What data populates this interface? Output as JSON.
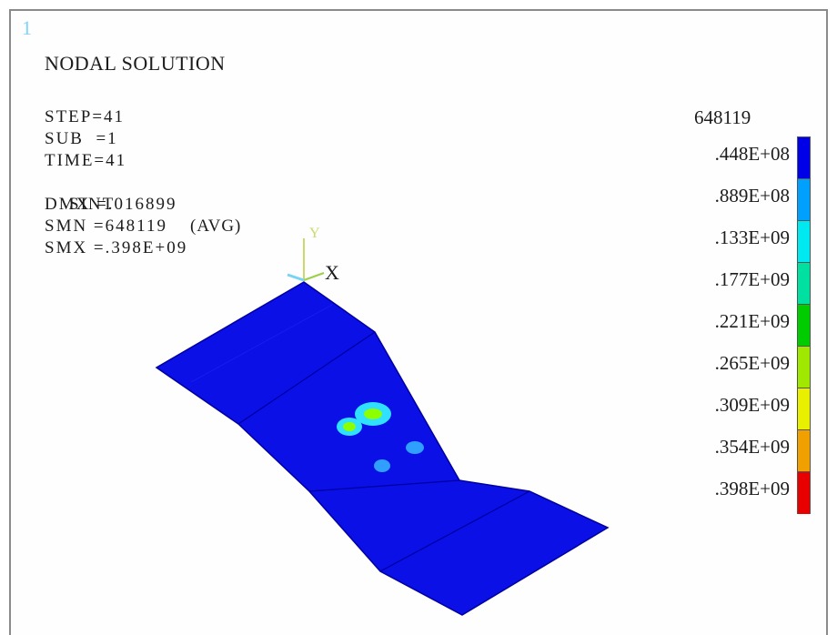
{
  "window": {
    "number": "1"
  },
  "header": {
    "title": "NODAL SOLUTION"
  },
  "info": {
    "step": "STEP=41",
    "sub": "SUB  =1",
    "time": "TIME=41",
    "sint": "SINT",
    "avg": "(AVG)",
    "dmx": "DMX =.016899",
    "smn": "SMN =648119",
    "smx": "SMX =.398E+09"
  },
  "axes": {
    "y": "Y",
    "x": "X"
  },
  "legend": {
    "min_label": "648119",
    "levels": [
      {
        "label": ".448E+08",
        "color": "#0000e8"
      },
      {
        "label": ".889E+08",
        "color": "#00a0ff"
      },
      {
        "label": ".133E+09",
        "color": "#00e8f0"
      },
      {
        "label": ".177E+09",
        "color": "#00e0a0"
      },
      {
        "label": ".221E+09",
        "color": "#00cc00"
      },
      {
        "label": ".265E+09",
        "color": "#a0e800"
      },
      {
        "label": ".309E+09",
        "color": "#e8f000"
      },
      {
        "label": ".354E+09",
        "color": "#f0a000"
      },
      {
        "label": ".398E+09",
        "color": "#e80000"
      }
    ]
  },
  "colors": {
    "model_fill": "#0a10e6",
    "model_edge": "#0000a0",
    "hotspot_cyan": "#30e0ff",
    "hotspot_green": "#8cff00"
  }
}
